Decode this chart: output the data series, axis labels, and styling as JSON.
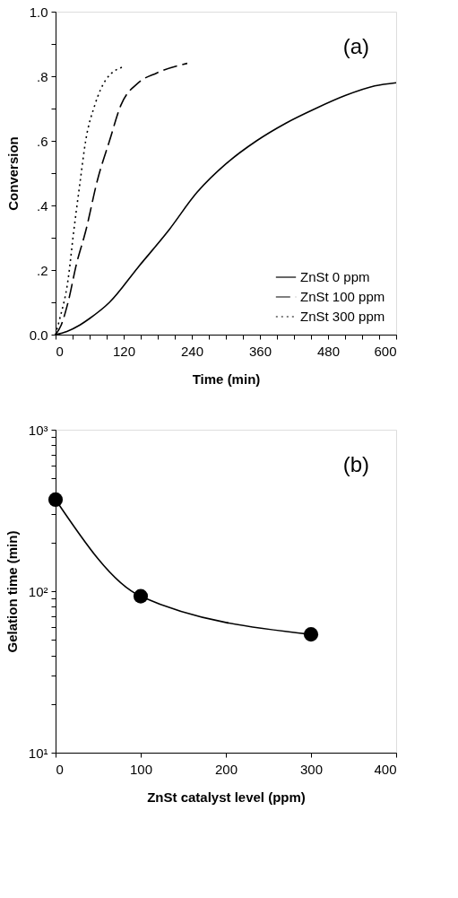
{
  "chart_data": [
    {
      "type": "line",
      "xlabel": "Time (min)",
      "ylabel": "Conversion",
      "annotations": [
        "(a)"
      ],
      "legend": "bottom right",
      "grid": false,
      "xlim": [
        0,
        600
      ],
      "ylim": [
        0,
        1
      ],
      "xticks": [
        0,
        {
          "value": 30,
          "label": null
        },
        {
          "value": 60,
          "label": null
        },
        {
          "value": 90,
          "label": null
        },
        120,
        {
          "value": 150,
          "label": null
        },
        {
          "value": 180,
          "label": null
        },
        {
          "value": 210,
          "label": null
        },
        240,
        {
          "value": 270,
          "label": null
        },
        {
          "value": 300,
          "label": null
        },
        {
          "value": 330,
          "label": null
        },
        360,
        {
          "value": 390,
          "label": null
        },
        {
          "value": 420,
          "label": null
        },
        {
          "value": 450,
          "label": null
        },
        480,
        {
          "value": 510,
          "label": null
        },
        {
          "value": 540,
          "label": null
        },
        {
          "value": 570,
          "label": null
        },
        600
      ],
      "yticks": [
        {
          "value": 0,
          "label": "0.0"
        },
        {
          "value": 0.1,
          "label": null
        },
        {
          "value": 0.2,
          "label": ".2"
        },
        {
          "value": 0.3,
          "label": null
        },
        {
          "value": 0.4,
          "label": ".4"
        },
        {
          "value": 0.5,
          "label": null
        },
        {
          "value": 0.6,
          "label": ".6"
        },
        {
          "value": 0.7,
          "label": null
        },
        {
          "value": 0.8,
          "label": ".8"
        },
        {
          "value": 0.9,
          "label": null
        },
        {
          "value": 1,
          "label": "1.0"
        }
      ],
      "series": [
        {
          "name": "ZnSt 0 ppm",
          "color": "#000000",
          "line_style": "solid",
          "x": [
            0,
            20,
            43,
            60,
            95,
            146,
            198,
            249,
            301,
            354,
            406,
            458,
            510,
            562,
            600
          ],
          "values": [
            0,
            0.01,
            0.03,
            0.05,
            0.1,
            0.21,
            0.32,
            0.44,
            0.53,
            0.6,
            0.655,
            0.7,
            0.74,
            0.77,
            0.78
          ]
        },
        {
          "name": "ZnSt 100 ppm",
          "color": "#000000",
          "line_style": "dashed",
          "x": [
            0,
            10,
            22,
            37,
            53,
            74,
            95,
            115,
            146,
            178,
            232
          ],
          "values": [
            0,
            0.03,
            0.1,
            0.22,
            0.32,
            0.48,
            0.6,
            0.71,
            0.78,
            0.81,
            0.84
          ]
        },
        {
          "name": "ZnSt 300 ppm",
          "color": "#000000",
          "line_style": "dotted",
          "x": [
            0,
            6,
            22,
            32,
            43,
            53,
            69,
            89,
            120
          ],
          "values": [
            0,
            0.04,
            0.17,
            0.32,
            0.47,
            0.6,
            0.71,
            0.79,
            0.83
          ]
        }
      ]
    },
    {
      "type": "line",
      "xlabel": "ZnSt catalyst level (ppm)",
      "ylabel": "Gelation time (min)",
      "annotations": [
        "(b)"
      ],
      "grid": false,
      "log": "y",
      "marker": "circle",
      "xlim": [
        0,
        400
      ],
      "ylim": [
        10,
        1000
      ],
      "xticks": [
        0,
        100,
        200,
        300,
        400
      ],
      "yticks": [
        {
          "value": 10,
          "label": "10¹"
        },
        {
          "value": 20,
          "label": null
        },
        {
          "value": 30,
          "label": null
        },
        {
          "value": 40,
          "label": null
        },
        {
          "value": 50,
          "label": null
        },
        {
          "value": 60,
          "label": null
        },
        {
          "value": 70,
          "label": null
        },
        {
          "value": 80,
          "label": null
        },
        {
          "value": 90,
          "label": null
        },
        {
          "value": 100,
          "label": "10²"
        },
        {
          "value": 200,
          "label": null
        },
        {
          "value": 300,
          "label": null
        },
        {
          "value": 400,
          "label": null
        },
        {
          "value": 500,
          "label": null
        },
        {
          "value": 600,
          "label": null
        },
        {
          "value": 700,
          "label": null
        },
        {
          "value": 800,
          "label": null
        },
        {
          "value": 900,
          "label": null
        },
        {
          "value": 1000,
          "label": "10³"
        }
      ],
      "series": [
        {
          "color": "#000000",
          "line_style": "solid",
          "x": [
            0,
            100,
            300
          ],
          "values": [
            369,
            93,
            54
          ]
        }
      ]
    }
  ]
}
